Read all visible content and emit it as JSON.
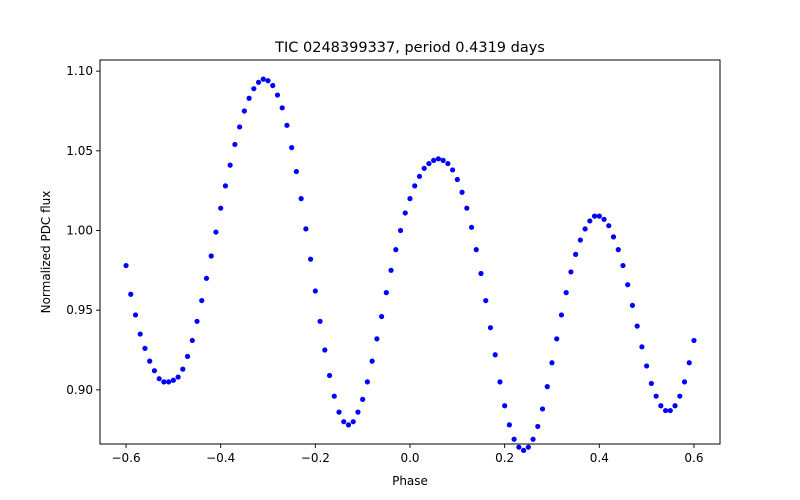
{
  "chart_data": {
    "type": "scatter",
    "title": "TIC 0248399337, period 0.4319 days",
    "xlabel": "Phase",
    "ylabel": "Normalized PDC flux",
    "xlim": [
      -0.655,
      0.655
    ],
    "ylim": [
      0.866,
      1.107
    ],
    "xticks": [
      -0.6,
      -0.4,
      -0.2,
      0.0,
      0.2,
      0.4,
      0.6
    ],
    "xtick_labels": [
      "−0.6",
      "−0.4",
      "−0.2",
      "0.0",
      "0.2",
      "0.4",
      "0.6"
    ],
    "yticks": [
      0.9,
      0.95,
      1.0,
      1.05,
      1.1
    ],
    "ytick_labels": [
      "0.90",
      "0.95",
      "1.00",
      "1.05",
      "1.10"
    ],
    "grid": false,
    "legend": "none",
    "marker_color": "#0000ff",
    "series": [
      {
        "marker": "dot",
        "x": [
          -0.6,
          -0.59,
          -0.58,
          -0.57,
          -0.56,
          -0.55,
          -0.54,
          -0.53,
          -0.52,
          -0.51,
          -0.5,
          -0.49,
          -0.48,
          -0.47,
          -0.46,
          -0.45,
          -0.44,
          -0.43,
          -0.42,
          -0.41,
          -0.4,
          -0.39,
          -0.38,
          -0.37,
          -0.36,
          -0.35,
          -0.34,
          -0.33,
          -0.32,
          -0.31,
          -0.3,
          -0.29,
          -0.28,
          -0.27,
          -0.26,
          -0.25,
          -0.24,
          -0.23,
          -0.22,
          -0.21,
          -0.2,
          -0.19,
          -0.18,
          -0.17,
          -0.16,
          -0.15,
          -0.14,
          -0.13,
          -0.12,
          -0.11,
          -0.1,
          -0.09,
          -0.08,
          -0.07,
          -0.06,
          -0.05,
          -0.04,
          -0.03,
          -0.02,
          -0.01,
          0.0,
          0.01,
          0.02,
          0.03,
          0.04,
          0.05,
          0.06,
          0.07,
          0.08,
          0.09,
          0.1,
          0.11,
          0.12,
          0.13,
          0.14,
          0.15,
          0.16,
          0.17,
          0.18,
          0.19,
          0.2,
          0.21,
          0.22,
          0.23,
          0.24,
          0.25,
          0.26,
          0.27,
          0.28,
          0.29,
          0.3,
          0.31,
          0.32,
          0.33,
          0.34,
          0.35,
          0.36,
          0.37,
          0.38,
          0.39,
          0.4,
          0.41,
          0.42,
          0.43,
          0.44,
          0.45,
          0.46,
          0.47,
          0.48,
          0.49,
          0.5,
          0.51,
          0.52,
          0.53,
          0.54,
          0.55,
          0.56,
          0.57,
          0.58,
          0.59,
          0.6
        ],
        "y": [
          0.978,
          0.96,
          0.947,
          0.935,
          0.926,
          0.918,
          0.912,
          0.907,
          0.905,
          0.905,
          0.906,
          0.908,
          0.913,
          0.921,
          0.931,
          0.943,
          0.956,
          0.97,
          0.984,
          0.999,
          1.014,
          1.028,
          1.041,
          1.054,
          1.065,
          1.075,
          1.083,
          1.089,
          1.093,
          1.095,
          1.094,
          1.091,
          1.085,
          1.077,
          1.066,
          1.052,
          1.037,
          1.02,
          1.001,
          0.982,
          0.962,
          0.943,
          0.925,
          0.909,
          0.896,
          0.886,
          0.88,
          0.878,
          0.88,
          0.886,
          0.894,
          0.905,
          0.918,
          0.932,
          0.946,
          0.961,
          0.975,
          0.988,
          1.0,
          1.011,
          1.02,
          1.028,
          1.034,
          1.039,
          1.042,
          1.044,
          1.045,
          1.044,
          1.042,
          1.038,
          1.032,
          1.024,
          1.014,
          1.002,
          0.988,
          0.973,
          0.956,
          0.939,
          0.922,
          0.905,
          0.89,
          0.878,
          0.869,
          0.864,
          0.862,
          0.864,
          0.869,
          0.877,
          0.888,
          0.902,
          0.917,
          0.932,
          0.947,
          0.961,
          0.974,
          0.985,
          0.994,
          1.001,
          1.006,
          1.009,
          1.009,
          1.007,
          1.003,
          0.996,
          0.988,
          0.978,
          0.966,
          0.953,
          0.94,
          0.927,
          0.915,
          0.904,
          0.896,
          0.89,
          0.887,
          0.887,
          0.89,
          0.896,
          0.905,
          0.917,
          0.931
        ]
      }
    ]
  }
}
